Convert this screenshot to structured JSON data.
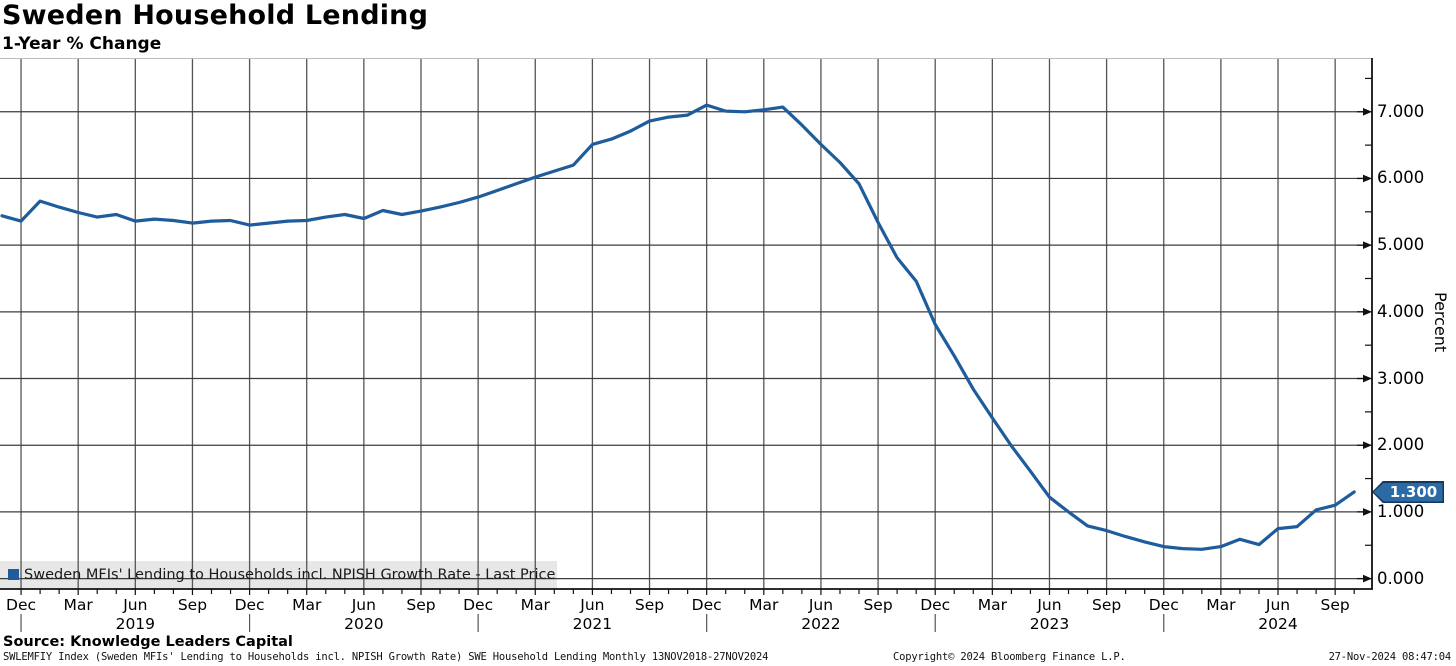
{
  "header": {
    "title": "Sweden Household Lending",
    "subtitle": "1-Year % Change"
  },
  "legend": {
    "marker_color": "#1e5c9b",
    "label": "Sweden MFIs' Lending to Households incl. NPISH Growth Rate - Last Price"
  },
  "y_axis": {
    "unit_label": "Percent",
    "tick_labels": [
      "0.000",
      "1.000",
      "2.000",
      "3.000",
      "4.000",
      "5.000",
      "6.000",
      "7.000"
    ],
    "last_price_badge": {
      "value": "1.300",
      "fill": "#2b6aa5",
      "border": "#16365e",
      "text_color": "#ffffff"
    }
  },
  "x_axis": {
    "month_tick_labels": [
      "Dec",
      "Mar",
      "Jun",
      "Sep",
      "Dec",
      "Mar",
      "Jun",
      "Sep",
      "Dec",
      "Mar",
      "Jun",
      "Sep",
      "Dec",
      "Mar",
      "Jun",
      "Sep",
      "Dec",
      "Mar",
      "Jun",
      "Sep",
      "Dec",
      "Mar",
      "Jun",
      "Sep"
    ],
    "year_labels": [
      "2019",
      "2020",
      "2021",
      "2022",
      "2023",
      "2024"
    ]
  },
  "footer": {
    "source": "Source: Knowledge Leaders Capital",
    "ticker_line": "SWLEMFIY Index (Sweden MFIs' Lending to Households incl. NPISH Growth Rate) SWE Household Lending  Monthly 13NOV2018-27NOV2024",
    "copyright": "Copyright© 2024 Bloomberg Finance L.P.",
    "timestamp": "27-Nov-2024 08:47:04"
  },
  "chart_data": {
    "type": "line",
    "title": "Sweden Household Lending",
    "subtitle": "1-Year % Change",
    "ylabel": "Percent",
    "ylim": [
      0,
      7.8
    ],
    "y_major_ticks": [
      0,
      1,
      2,
      3,
      4,
      5,
      6,
      7
    ],
    "y_minor_tick_step": 0.5,
    "grid": "both",
    "frequency": "monthly",
    "x_start": "Nov 2018",
    "x_end": "Oct 2024",
    "x_tick_every_months": 3,
    "years": [
      "2019",
      "2020",
      "2021",
      "2022",
      "2023",
      "2024"
    ],
    "last_price": 1.3,
    "legend_position": "bottom-left",
    "series": [
      {
        "name": "Sweden MFIs' Lending to Households incl. NPISH Growth Rate - Last Price",
        "color": "#1e5c9b",
        "values": [
          5.44,
          5.36,
          5.66,
          5.57,
          5.49,
          5.42,
          5.46,
          5.36,
          5.39,
          5.37,
          5.33,
          5.36,
          5.37,
          5.3,
          5.33,
          5.36,
          5.37,
          5.42,
          5.46,
          5.4,
          5.52,
          5.46,
          5.51,
          5.57,
          5.64,
          5.72,
          5.82,
          5.92,
          6.02,
          6.11,
          6.2,
          6.51,
          6.59,
          6.71,
          6.86,
          6.92,
          6.95,
          7.1,
          7.01,
          7.0,
          7.03,
          7.07,
          6.8,
          6.51,
          6.24,
          5.92,
          5.34,
          4.81,
          4.46,
          3.81,
          3.34,
          2.84,
          2.41,
          1.99,
          1.61,
          1.22,
          1.0,
          0.79,
          0.72,
          0.63,
          0.55,
          0.48,
          0.45,
          0.44,
          0.48,
          0.59,
          0.51,
          0.75,
          0.78,
          1.03,
          1.1,
          1.3
        ]
      }
    ],
    "colors": {
      "line": "#1e5c9b",
      "vertical_grid": "#555555",
      "horizontal_grid": "#3d3d3d",
      "axis": "#111111",
      "legend_background": "#e7e7e7"
    }
  }
}
